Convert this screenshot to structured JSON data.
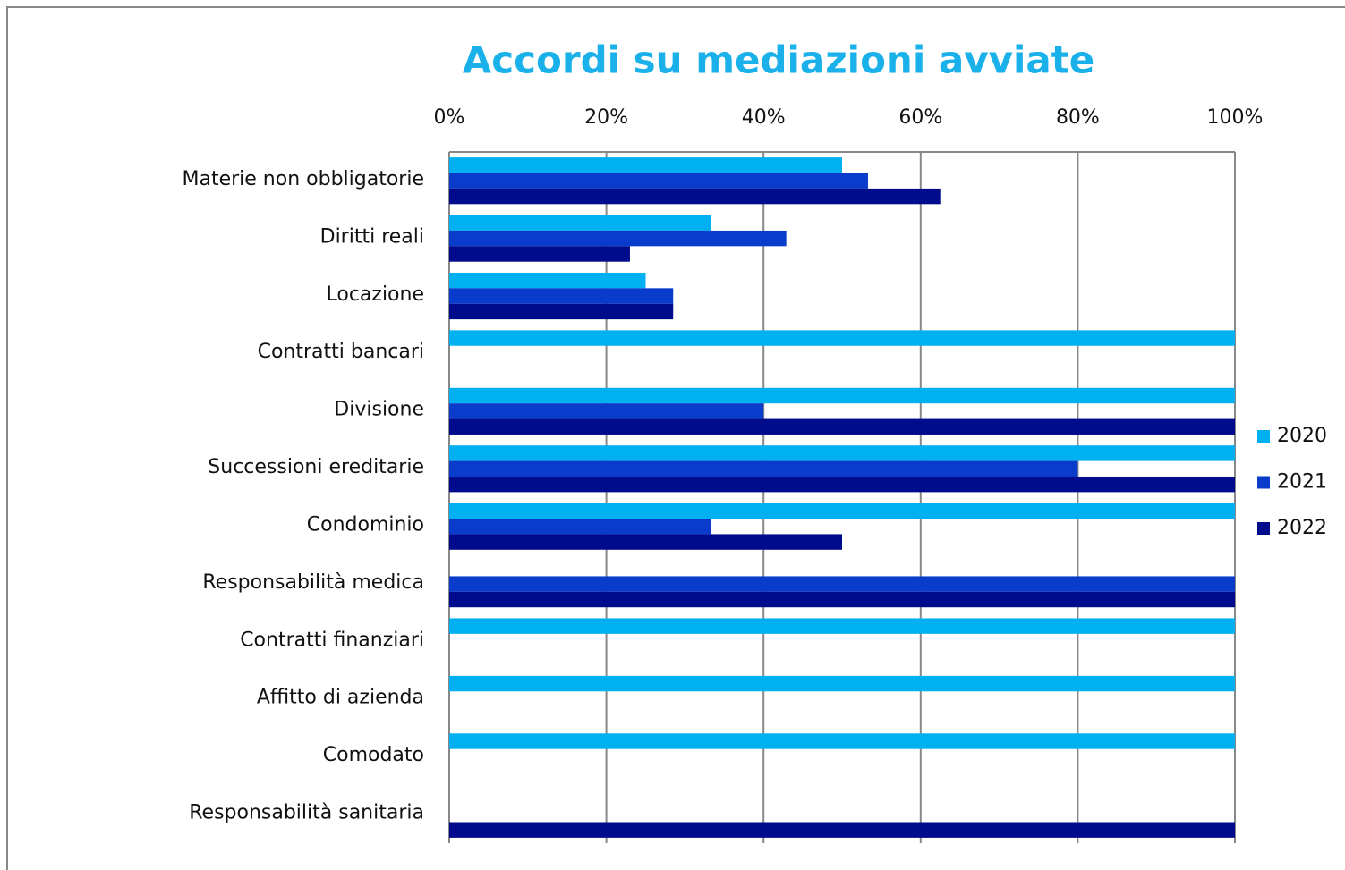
{
  "chart_data": {
    "type": "bar",
    "orientation": "horizontal",
    "title": "Accordi su mediazioni avviate",
    "categories": [
      "Materie non obbligatorie",
      "Diritti reali",
      "Locazione",
      "Contratti bancari",
      "Divisione",
      "Successioni ereditarie",
      "Condominio",
      "Responsabilità medica",
      "Contratti finanziari",
      "Affitto di azienda",
      "Comodato",
      "Responsabilità sanitaria"
    ],
    "series": [
      {
        "name": "2020",
        "color": "#00b0f0",
        "values": [
          50,
          33.3,
          25,
          100,
          100,
          100,
          100,
          null,
          100,
          100,
          100,
          null
        ]
      },
      {
        "name": "2021",
        "color": "#0a3ccc",
        "values": [
          53.3,
          42.9,
          28.5,
          null,
          40,
          80,
          33.3,
          100,
          null,
          null,
          null,
          null
        ]
      },
      {
        "name": "2022",
        "color": "#000c8c",
        "values": [
          62.5,
          23,
          28.5,
          null,
          100,
          100,
          50,
          100,
          null,
          null,
          null,
          100
        ]
      }
    ],
    "xlim": [
      0,
      100
    ],
    "xticks": [
      {
        "value": 0,
        "label": "0%"
      },
      {
        "value": 20,
        "label": "20%"
      },
      {
        "value": 40,
        "label": "40%"
      },
      {
        "value": 60,
        "label": "60%"
      },
      {
        "value": 80,
        "label": "80%"
      },
      {
        "value": 100,
        "label": "100%"
      }
    ],
    "grid": true,
    "legend": "right"
  }
}
